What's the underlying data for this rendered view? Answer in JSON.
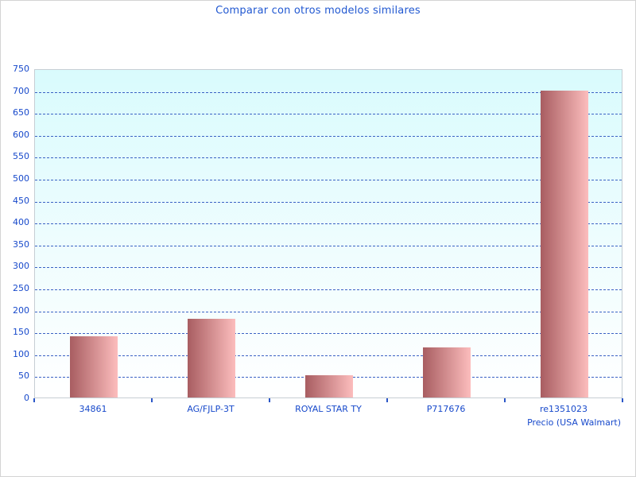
{
  "chart_data": {
    "type": "bar",
    "title": "Comparar con otros modelos similares",
    "categories": [
      "34861",
      "AG/FJLP-3T",
      "ROYAL STAR TY",
      "P717676",
      "re1351023"
    ],
    "values": [
      140,
      180,
      50,
      115,
      700
    ],
    "xlabel": "Precio (USA Walmart)",
    "ylabel": "",
    "ylim": [
      0,
      750
    ],
    "ytick_step": 50,
    "grid": "horizontal-dashed",
    "legend": "none",
    "colors": {
      "title_text": "#2158d1",
      "axis_text": "#1749cb",
      "gridline": "#3b62c4",
      "tick": "#2b57c8",
      "plot_bg_top": "#d9fbfd",
      "plot_bg_bottom": "#ffffff",
      "plot_border": "#c6ced4",
      "bar_gradient_left": "#a85d61",
      "bar_gradient_right": "#fcbdbd",
      "page_border": "#d4d4d4"
    }
  }
}
